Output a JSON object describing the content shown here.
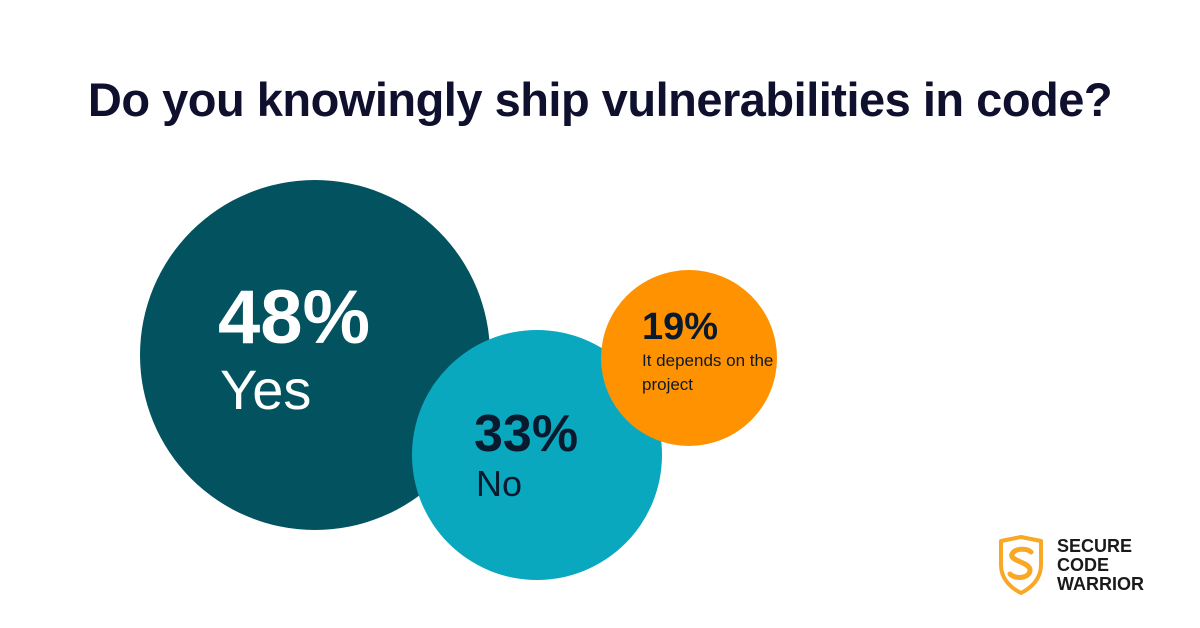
{
  "title": "Do you knowingly ship vulnerabilities in code?",
  "colors": {
    "yes": "#02535f",
    "no": "#0aa8bf",
    "depends": "#fe9200",
    "title_text": "#0f0f2e",
    "dark_text": "#0a1a2e",
    "logo_accent": "#f9a825"
  },
  "chart_data": {
    "type": "bubble",
    "title": "Do you knowingly ship vulnerabilities in code?",
    "categories": [
      "Yes",
      "No",
      "It depends on the project"
    ],
    "values": [
      48,
      33,
      19
    ],
    "unit": "%",
    "labels": {
      "yes_value": "48%",
      "yes_category": "Yes",
      "no_value": "33%",
      "no_category": "No",
      "depends_value": "19%",
      "depends_category": "It depends on the project"
    }
  },
  "logo": {
    "line1": "SECURE",
    "line2": "CODE",
    "line3": "WARRIOR",
    "icon": "shield-s-icon"
  }
}
